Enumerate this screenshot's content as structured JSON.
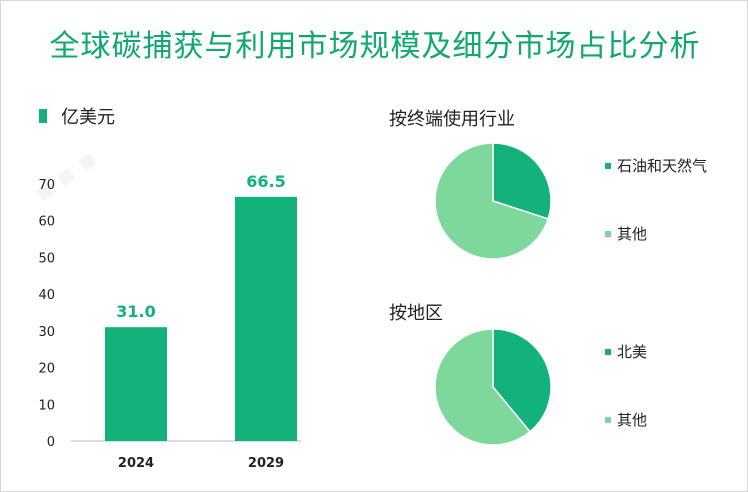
{
  "title": "全球碳捕获与利用市场规模及细分市场占比分析",
  "chart_data": [
    {
      "type": "bar",
      "legend": "亿美元",
      "categories": [
        "2024",
        "2029"
      ],
      "values": [
        31.0,
        66.5
      ],
      "value_labels": [
        "31.0",
        "66.5"
      ],
      "ylim": [
        0,
        70
      ],
      "yticks": [
        0,
        10,
        20,
        30,
        40,
        50,
        60,
        70
      ],
      "grid": false,
      "colors": {
        "bar": "#12b27a",
        "label": "#12b27a"
      }
    },
    {
      "type": "pie",
      "title": "按终端使用行业",
      "labels": [
        "石油和天然气",
        "其他"
      ],
      "values": [
        30,
        70
      ],
      "colors": [
        "#12b27a",
        "#7fd89b"
      ]
    },
    {
      "type": "pie",
      "title": "按地区",
      "labels": [
        "北美",
        "其他"
      ],
      "values": [
        39,
        61
      ],
      "colors": [
        "#12b27a",
        "#7fd89b"
      ]
    }
  ]
}
